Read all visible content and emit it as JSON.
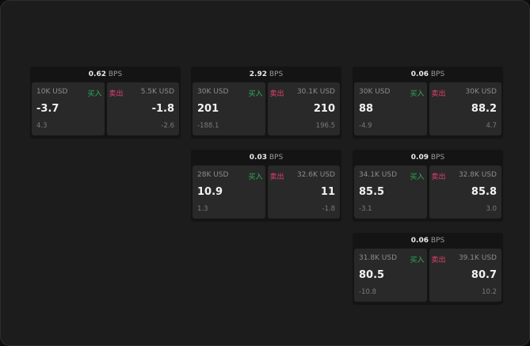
{
  "colors": {
    "buy": "#2fae5d",
    "sell": "#e0406e"
  },
  "labels": {
    "buy": "买入",
    "sell": "卖出",
    "unit": "BPS"
  },
  "cards": [
    {
      "spread": "0.62",
      "bid_qty": "10K USD",
      "bid": "-3.7",
      "bid_chg": "4.3",
      "ask_qty": "5.5K USD",
      "ask": "-1.8",
      "ask_chg": "-2.6"
    },
    {
      "spread": "2.92",
      "bid_qty": "30K USD",
      "bid": "201",
      "bid_chg": "-188.1",
      "ask_qty": "30.1K USD",
      "ask": "210",
      "ask_chg": "196.5"
    },
    {
      "spread": "0.06",
      "bid_qty": "30K USD",
      "bid": "88",
      "bid_chg": "-4.9",
      "ask_qty": "30K USD",
      "ask": "88.2",
      "ask_chg": "4.7"
    },
    {
      "spread": "0.03",
      "bid_qty": "28K USD",
      "bid": "10.9",
      "bid_chg": "1.3",
      "ask_qty": "32.6K USD",
      "ask": "11",
      "ask_chg": "-1.8"
    },
    {
      "spread": "0.09",
      "bid_qty": "34.1K USD",
      "bid": "85.5",
      "bid_chg": "-3.1",
      "ask_qty": "32.8K USD",
      "ask": "85.8",
      "ask_chg": "3.0"
    },
    {
      "spread": "0.06",
      "bid_qty": "31.8K USD",
      "bid": "80.5",
      "bid_chg": "-10.8",
      "ask_qty": "39.1K USD",
      "ask": "80.7",
      "ask_chg": "10.2"
    }
  ]
}
